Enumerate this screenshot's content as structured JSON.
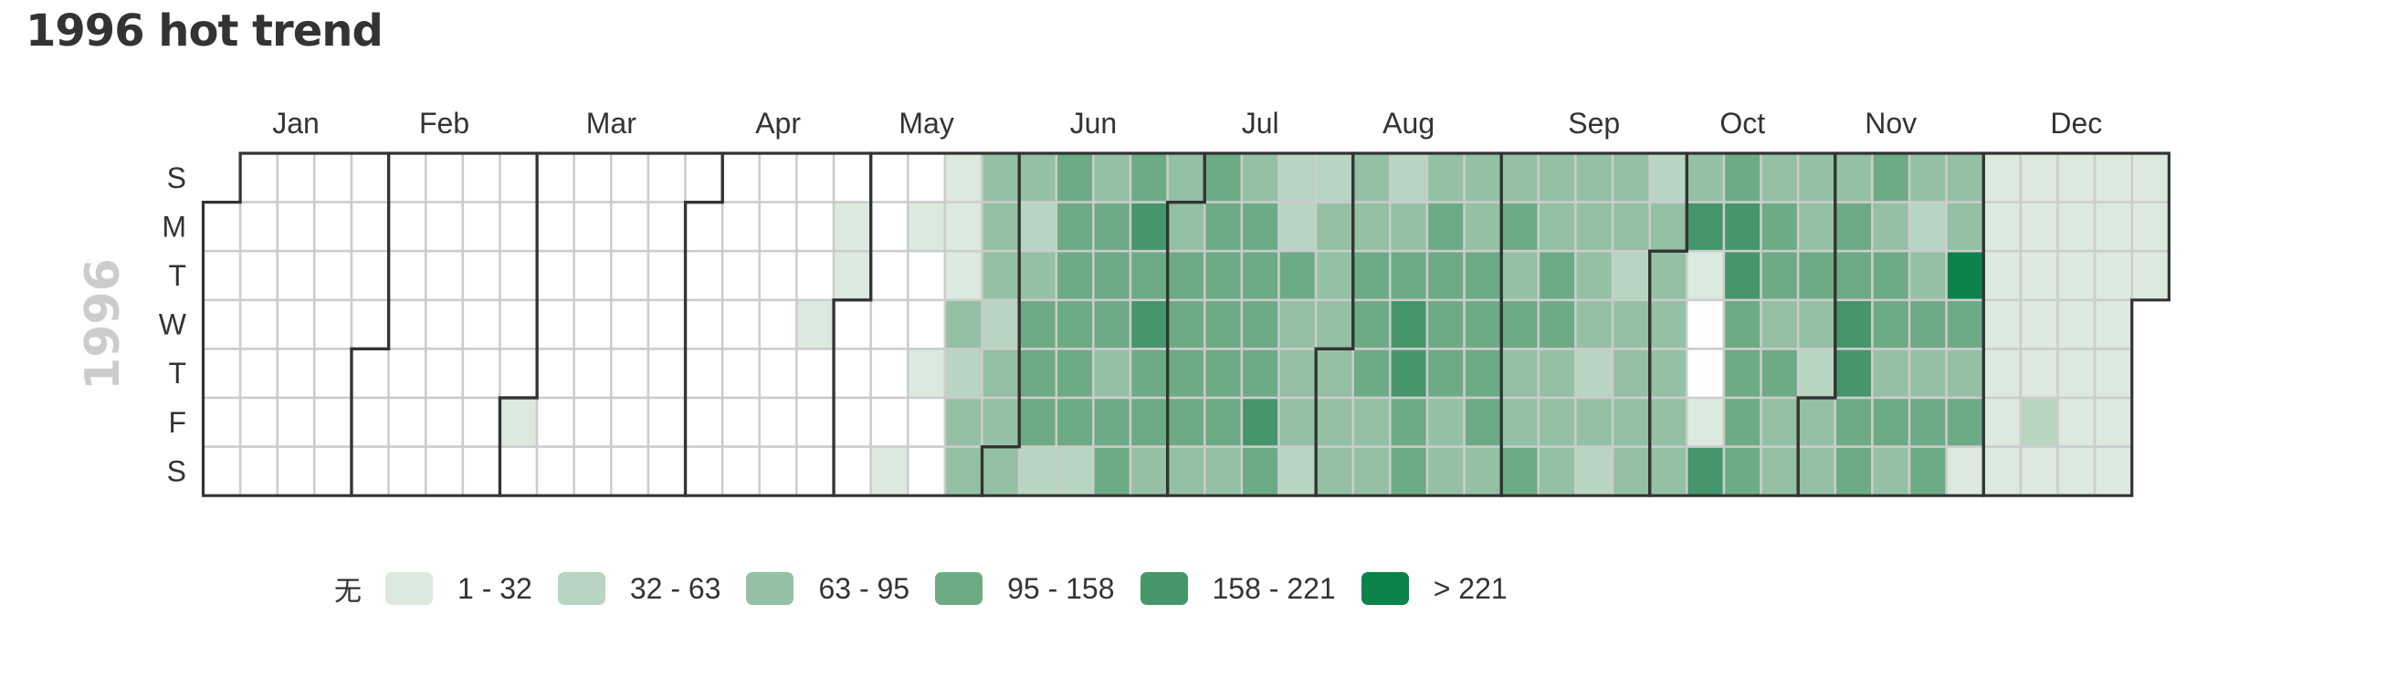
{
  "title": "1996 hot trend",
  "chart_data": {
    "type": "heatmap",
    "subtype": "calendar",
    "title": "1996 hot trend",
    "year": 1996,
    "year_label": "1996",
    "first_day_of_week": "Sunday",
    "day_labels": [
      "S",
      "M",
      "T",
      "W",
      "T",
      "F",
      "S"
    ],
    "month_labels": [
      "Jan",
      "Feb",
      "Mar",
      "Apr",
      "May",
      "Jun",
      "Jul",
      "Aug",
      "Sep",
      "Oct",
      "Nov",
      "Dec"
    ],
    "legend": {
      "none_label": "无",
      "pieces": [
        {
          "label": "1 - 32",
          "min": 1,
          "max": 32,
          "color": "#dbe9df"
        },
        {
          "label": "32 - 63",
          "min": 32,
          "max": 63,
          "color": "#b7d5c1"
        },
        {
          "label": "63 - 95",
          "min": 63,
          "max": 95,
          "color": "#94c1a3"
        },
        {
          "label": "95 - 158",
          "min": 95,
          "max": 158,
          "color": "#6dab84"
        },
        {
          "label": "158 - 221",
          "min": 158,
          "max": 221,
          "color": "#45966a"
        },
        {
          "label": "> 221",
          "min": 221,
          "max": null,
          "color": "#0b834a"
        }
      ]
    },
    "level_colors": [
      "#ffffff",
      "#dbe9df",
      "#b7d5c1",
      "#94c1a3",
      "#6dab84",
      "#45966a",
      "#0b834a"
    ],
    "level_note": "Each week column lists 7 day levels Sun..Sat; 0 = no data (无), 1..6 = legend pieces, '-' = outside year",
    "weeks": [
      "-000000",
      "0000000",
      "0000000",
      "0000000",
      "0000000",
      "0000000",
      "0000000",
      "0000000",
      "0000010",
      "0000000",
      "0000000",
      "0000000",
      "0000000",
      "0000000",
      "0000000",
      "0000000",
      "0001000",
      "0110000",
      "0000001",
      "0100100",
      "1113233",
      "3332333",
      "3234442",
      "4444442",
      "3444344",
      "4545443",
      "3344443",
      "4444443",
      "3444454",
      "2243332",
      "2333333",
      "3344433",
      "2345544",
      "3444433",
      "3344443",
      "3434334",
      "3344333",
      "3333232",
      "3323333",
      "2333333",
      "3510015",
      "4554444",
      "3443433",
      "3343233",
      "3445544",
      "4344343",
      "3234344",
      "3364341",
      "1111111",
      "1111121",
      "1111111",
      "1111111",
      "111----"
    ],
    "notable": {
      "max_cell": {
        "date": "1996-11-26",
        "range": "> 221"
      },
      "empty_days_in_season": [
        "1996-10-09",
        "1996-10-10"
      ]
    }
  },
  "colors": {
    "cell_border": "#cccccc",
    "month_border": "#333333",
    "text": "#333333",
    "year_label": "#cccccc"
  }
}
